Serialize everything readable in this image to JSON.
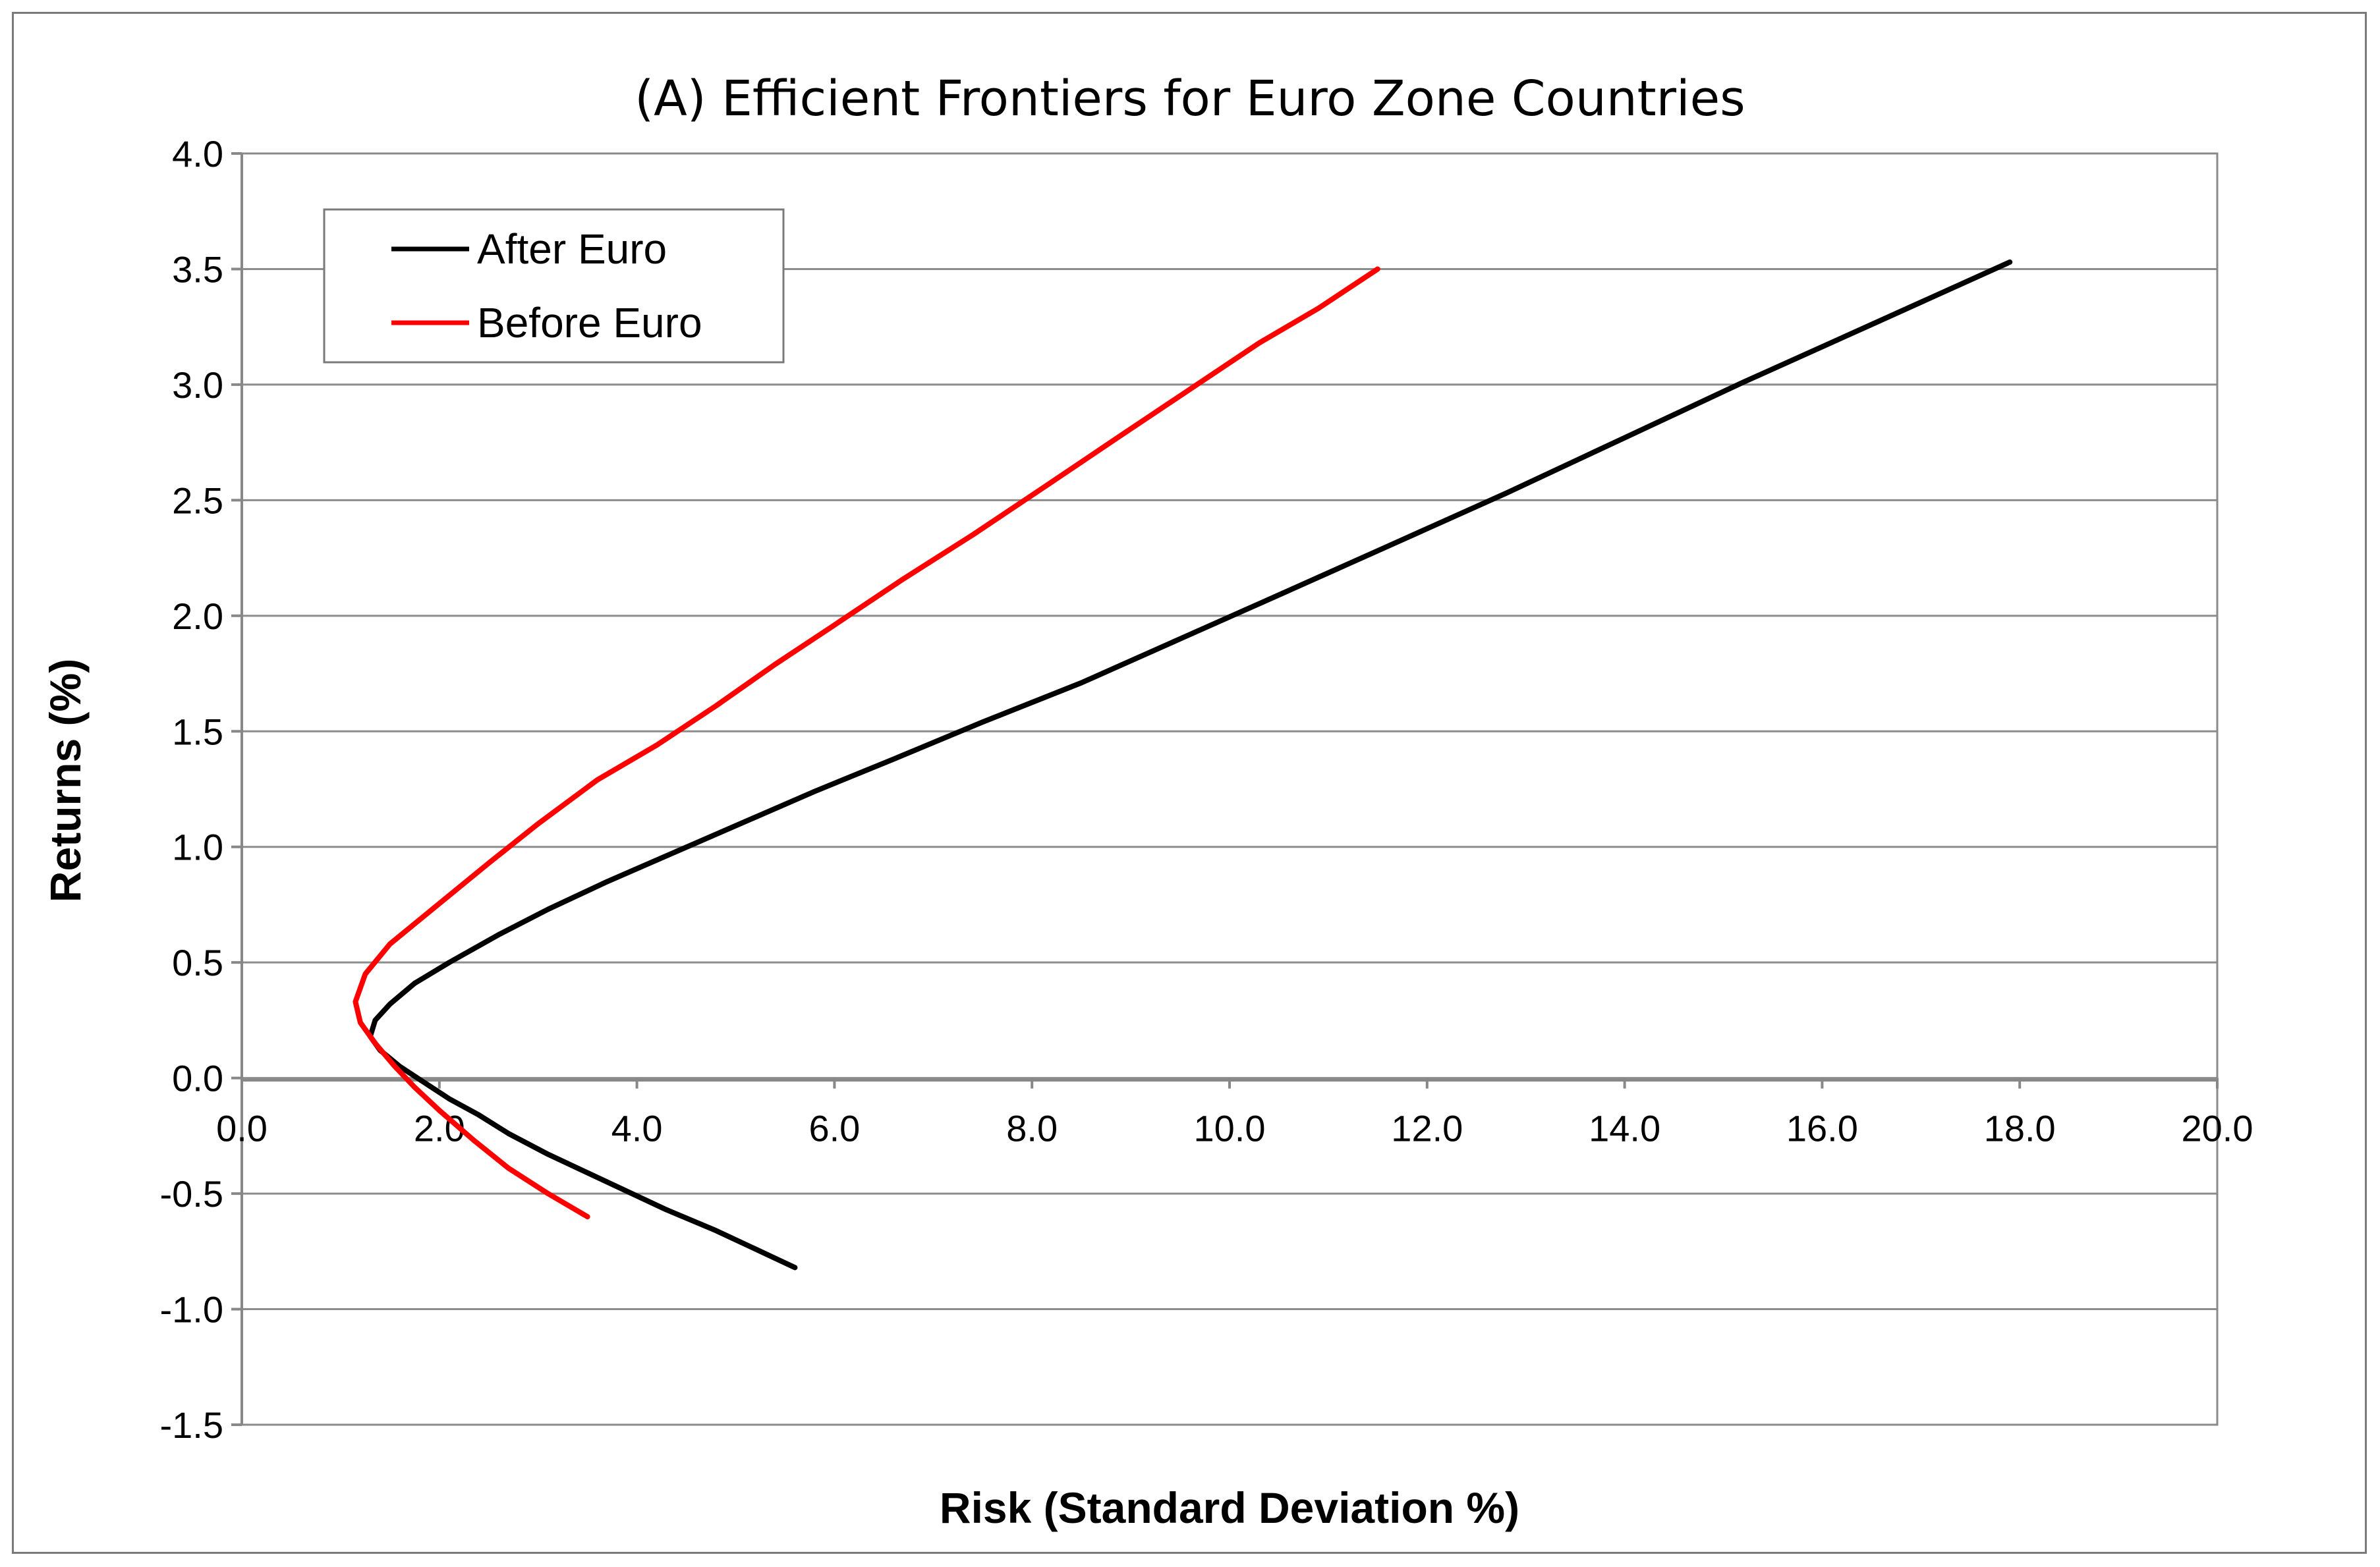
{
  "chart_data": {
    "type": "line",
    "title": "(A) Efficient Frontiers for Euro Zone Countries",
    "xlabel": "Risk (Standard Deviation %)",
    "ylabel": "Returns (%)",
    "xlim": [
      0,
      20
    ],
    "ylim": [
      -1.5,
      4.0
    ],
    "x_ticks": [
      "0.0",
      "2.0",
      "4.0",
      "6.0",
      "8.0",
      "10.0",
      "12.0",
      "14.0",
      "16.0",
      "18.0",
      "20.0"
    ],
    "y_ticks": [
      "4.0",
      "3.5",
      "3.0",
      "2.5",
      "2.0",
      "1.5",
      "1.0",
      "0.5",
      "0.0",
      "-0.5",
      "-1.0",
      "-1.5"
    ],
    "grid": "horizontal",
    "legend_position": "top-left",
    "series": [
      {
        "name": "After Euro",
        "color": "#000000",
        "points": [
          [
            5.6,
            -0.82
          ],
          [
            5.2,
            -0.74
          ],
          [
            4.8,
            -0.66
          ],
          [
            4.3,
            -0.57
          ],
          [
            3.9,
            -0.49
          ],
          [
            3.5,
            -0.41
          ],
          [
            3.1,
            -0.33
          ],
          [
            2.7,
            -0.24
          ],
          [
            2.4,
            -0.16
          ],
          [
            2.1,
            -0.09
          ],
          [
            1.85,
            -0.02
          ],
          [
            1.6,
            0.05
          ],
          [
            1.4,
            0.12
          ],
          [
            1.3,
            0.18
          ],
          [
            1.35,
            0.25
          ],
          [
            1.5,
            0.32
          ],
          [
            1.75,
            0.41
          ],
          [
            2.1,
            0.5
          ],
          [
            2.6,
            0.62
          ],
          [
            3.1,
            0.73
          ],
          [
            3.7,
            0.85
          ],
          [
            4.4,
            0.98
          ],
          [
            5.1,
            1.11
          ],
          [
            5.8,
            1.24
          ],
          [
            6.6,
            1.38
          ],
          [
            7.5,
            1.54
          ],
          [
            8.5,
            1.71
          ],
          [
            9.5,
            1.9
          ],
          [
            10.5,
            2.09
          ],
          [
            11.6,
            2.3
          ],
          [
            12.8,
            2.53
          ],
          [
            14.0,
            2.77
          ],
          [
            15.2,
            3.01
          ],
          [
            16.5,
            3.26
          ],
          [
            17.9,
            3.53
          ]
        ]
      },
      {
        "name": "Before Euro",
        "color": "#ff0000",
        "points": [
          [
            3.5,
            -0.6
          ],
          [
            3.1,
            -0.5
          ],
          [
            2.7,
            -0.39
          ],
          [
            2.35,
            -0.27
          ],
          [
            2.0,
            -0.14
          ],
          [
            1.75,
            -0.04
          ],
          [
            1.55,
            0.05
          ],
          [
            1.35,
            0.15
          ],
          [
            1.2,
            0.24
          ],
          [
            1.15,
            0.33
          ],
          [
            1.25,
            0.45
          ],
          [
            1.5,
            0.58
          ],
          [
            1.9,
            0.72
          ],
          [
            2.5,
            0.93
          ],
          [
            3.0,
            1.1
          ],
          [
            3.6,
            1.29
          ],
          [
            4.2,
            1.44
          ],
          [
            4.8,
            1.61
          ],
          [
            5.4,
            1.79
          ],
          [
            6.0,
            1.96
          ],
          [
            6.7,
            2.16
          ],
          [
            7.4,
            2.35
          ],
          [
            8.1,
            2.55
          ],
          [
            8.9,
            2.78
          ],
          [
            9.6,
            2.98
          ],
          [
            10.3,
            3.18
          ],
          [
            10.9,
            3.33
          ],
          [
            11.5,
            3.5
          ]
        ]
      }
    ]
  }
}
